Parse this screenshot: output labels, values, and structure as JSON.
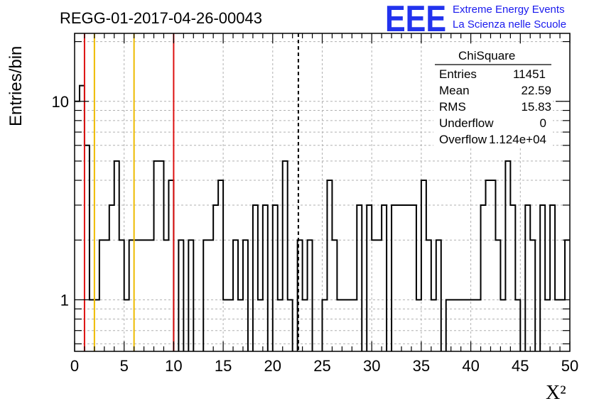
{
  "header": {
    "title": "REGG-01-2017-04-26-00043",
    "logo": "EEE",
    "org_line1": "Extreme Energy Events",
    "org_line2": "La Scienza nelle Scuole"
  },
  "stats_box": {
    "name": "ChiSquare",
    "rows": [
      {
        "label": "Entries",
        "value": "11451"
      },
      {
        "label": "Mean",
        "value": "22.59"
      },
      {
        "label": "RMS",
        "value": "15.83"
      },
      {
        "label": "Underflow",
        "value": "0"
      },
      {
        "label": "Overflow",
        "value": "1.124e+04"
      }
    ]
  },
  "colors": {
    "histogram": "#000000",
    "red_lines": "#dd1111",
    "yellow_lines": "#eebb00",
    "mean_line": "#000000",
    "grid": "#b0b0b0",
    "logo": "#2233ee"
  },
  "chart_data": {
    "type": "histogram",
    "title": "REGG-01-2017-04-26-00043",
    "xlabel": "X²",
    "ylabel": "Entries/bin",
    "xlim": [
      0,
      50
    ],
    "ylim": [
      0.55,
      22
    ],
    "y_scale": "log",
    "grid": true,
    "bin_width": 0.5,
    "x_ticks": [
      0,
      5,
      10,
      15,
      20,
      25,
      30,
      35,
      40,
      45,
      50
    ],
    "x_tick_labels": [
      "0",
      "5",
      "10",
      "15",
      "20",
      "25",
      "30",
      "35",
      "40",
      "45",
      "50"
    ],
    "y_ticks": [
      1,
      10
    ],
    "y_tick_labels": [
      "1",
      "10"
    ],
    "bins": [
      [
        0.0,
        10
      ],
      [
        0.5,
        12
      ],
      [
        1.0,
        6
      ],
      [
        1.5,
        1
      ],
      [
        2.0,
        1
      ],
      [
        2.5,
        2
      ],
      [
        3.0,
        2
      ],
      [
        3.5,
        3
      ],
      [
        4.0,
        5
      ],
      [
        4.5,
        2
      ],
      [
        5.0,
        1
      ],
      [
        5.5,
        2
      ],
      [
        6.0,
        2
      ],
      [
        6.5,
        2
      ],
      [
        7.0,
        2
      ],
      [
        7.5,
        2
      ],
      [
        8.0,
        5
      ],
      [
        8.5,
        5
      ],
      [
        9.0,
        2
      ],
      [
        9.5,
        4
      ],
      [
        10.0,
        0
      ],
      [
        10.5,
        2
      ],
      [
        11.0,
        0
      ],
      [
        11.5,
        2
      ],
      [
        12.0,
        0
      ],
      [
        12.5,
        0
      ],
      [
        13.0,
        2
      ],
      [
        13.5,
        2
      ],
      [
        14.0,
        3
      ],
      [
        14.5,
        4
      ],
      [
        15.0,
        1
      ],
      [
        15.5,
        1
      ],
      [
        16.0,
        2
      ],
      [
        16.5,
        1
      ],
      [
        17.0,
        2
      ],
      [
        17.5,
        0
      ],
      [
        18.0,
        3
      ],
      [
        18.5,
        1
      ],
      [
        19.0,
        3
      ],
      [
        19.5,
        0
      ],
      [
        20.0,
        3
      ],
      [
        20.5,
        1
      ],
      [
        21.0,
        5
      ],
      [
        21.5,
        1
      ],
      [
        22.0,
        0
      ],
      [
        22.5,
        2
      ],
      [
        23.0,
        1
      ],
      [
        23.5,
        2
      ],
      [
        24.0,
        0
      ],
      [
        24.5,
        0
      ],
      [
        25.0,
        1
      ],
      [
        25.5,
        4
      ],
      [
        26.0,
        2
      ],
      [
        26.5,
        1
      ],
      [
        27.0,
        1
      ],
      [
        27.5,
        1
      ],
      [
        28.0,
        1
      ],
      [
        28.5,
        3
      ],
      [
        29.0,
        0
      ],
      [
        29.5,
        3
      ],
      [
        30.0,
        2
      ],
      [
        30.5,
        2
      ],
      [
        31.0,
        3
      ],
      [
        31.5,
        0
      ],
      [
        32.0,
        3
      ],
      [
        32.5,
        3
      ],
      [
        33.0,
        3
      ],
      [
        33.5,
        3
      ],
      [
        34.0,
        3
      ],
      [
        34.5,
        1
      ],
      [
        35.0,
        4
      ],
      [
        35.5,
        2
      ],
      [
        36.0,
        1
      ],
      [
        36.5,
        2
      ],
      [
        37.0,
        0
      ],
      [
        37.5,
        1
      ],
      [
        38.0,
        1
      ],
      [
        38.5,
        1
      ],
      [
        39.0,
        1
      ],
      [
        39.5,
        1
      ],
      [
        40.0,
        1
      ],
      [
        40.5,
        1
      ],
      [
        41.0,
        3
      ],
      [
        41.5,
        4
      ],
      [
        42.0,
        4
      ],
      [
        42.5,
        2
      ],
      [
        43.0,
        1
      ],
      [
        43.5,
        5
      ],
      [
        44.0,
        3
      ],
      [
        44.5,
        1
      ],
      [
        45.0,
        0
      ],
      [
        45.5,
        3
      ],
      [
        46.0,
        2
      ],
      [
        46.5,
        0
      ],
      [
        47.0,
        3
      ],
      [
        47.5,
        1
      ],
      [
        48.0,
        3
      ],
      [
        48.5,
        1
      ],
      [
        49.0,
        1
      ],
      [
        49.5,
        2
      ]
    ],
    "vertical_lines": [
      {
        "x": 1,
        "color": "red"
      },
      {
        "x": 2,
        "color": "yellow"
      },
      {
        "x": 6,
        "color": "yellow"
      },
      {
        "x": 10,
        "color": "red"
      },
      {
        "x": 22.59,
        "color": "black",
        "style": "dashed"
      }
    ]
  }
}
